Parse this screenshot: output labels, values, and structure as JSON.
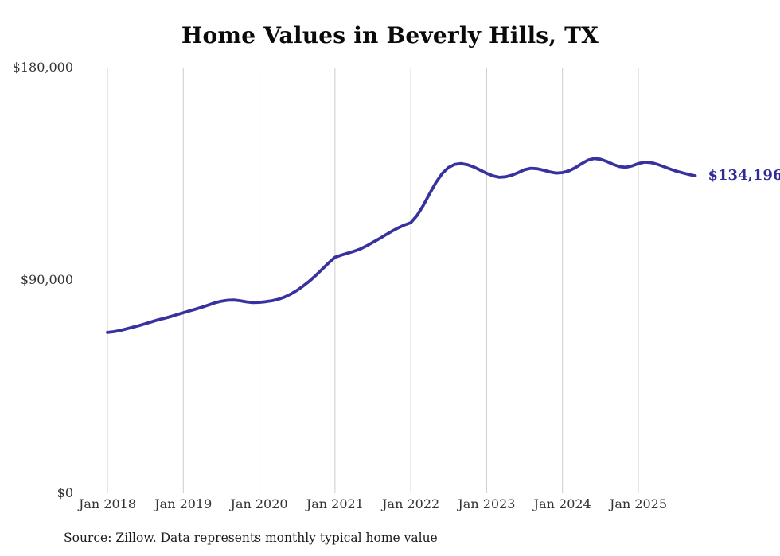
{
  "figure": {
    "title": "Home Values in Beverly Hills, TX",
    "source_note": "Source: Zillow. Data represents monthly typical home value"
  },
  "chart_data": {
    "type": "line",
    "title": "Home Values in Beverly Hills, TX",
    "series_name": "Monthly typical home value",
    "x_frequency": "monthly",
    "x_start": "Jan 2018",
    "x_end": "Oct 2025",
    "x_tick_labels": [
      "Jan 2018",
      "Jan 2019",
      "Jan 2020",
      "Jan 2021",
      "Jan 2022",
      "Jan 2023",
      "Jan 2024",
      "Jan 2025"
    ],
    "y_tick_labels": [
      "$0",
      "$90,000",
      "$180,000"
    ],
    "y_tick_values": [
      0,
      90000,
      180000
    ],
    "ylim": [
      0,
      180000
    ],
    "grid": "vertical-only",
    "legend": "none",
    "line_color": "#38329f",
    "end_label_color": "#2f2a96",
    "gridline_color": "#cccccc",
    "end_label": "$134,196",
    "end_value": 134196,
    "values": [
      68000,
      68300,
      68800,
      69500,
      70200,
      70900,
      71700,
      72500,
      73300,
      74000,
      74700,
      75500,
      76300,
      77100,
      77900,
      78700,
      79600,
      80500,
      81200,
      81600,
      81700,
      81400,
      80900,
      80600,
      80700,
      81000,
      81400,
      82000,
      82900,
      84200,
      85800,
      87700,
      89800,
      92200,
      94800,
      97400,
      99800,
      100700,
      101500,
      102300,
      103300,
      104600,
      106100,
      107600,
      109200,
      110800,
      112200,
      113400,
      114400,
      117500,
      121800,
      126800,
      131500,
      135300,
      137800,
      139100,
      139400,
      138900,
      137900,
      136600,
      135300,
      134200,
      133600,
      133800,
      134500,
      135600,
      136800,
      137400,
      137200,
      136600,
      135900,
      135400,
      135600,
      136300,
      137600,
      139300,
      140800,
      141500,
      141200,
      140300,
      139100,
      138100,
      137800,
      138400,
      139400,
      140000,
      139800,
      139100,
      138100,
      137100,
      136200,
      135500,
      134800,
      134196
    ]
  }
}
